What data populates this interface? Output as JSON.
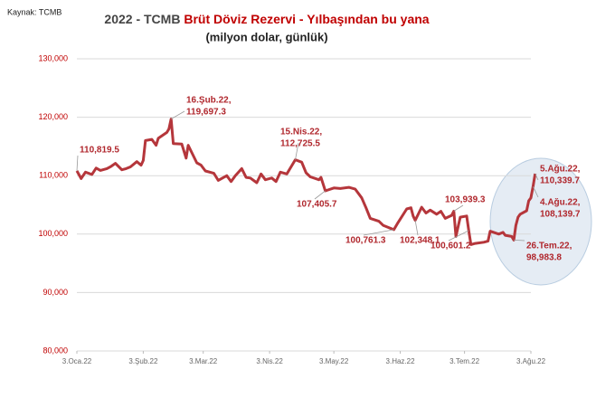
{
  "chart_data": {
    "type": "line",
    "source": "Kaynak: TCMB",
    "title": [
      "2022 - TCMB ",
      "Brüt Döviz Rezervi - Yılbaşından bu yana"
    ],
    "subtitle": "(milyon dolar, günlük)",
    "color": "#b5363b",
    "grid": true,
    "x": [
      "2022-01-03",
      "2022-01-05",
      "2022-01-07",
      "2022-01-10",
      "2022-01-12",
      "2022-01-14",
      "2022-01-17",
      "2022-01-19",
      "2022-01-21",
      "2022-01-24",
      "2022-01-26",
      "2022-01-28",
      "2022-01-31",
      "2022-02-02",
      "2022-02-03",
      "2022-02-04",
      "2022-02-07",
      "2022-02-09",
      "2022-02-10",
      "2022-02-14",
      "2022-02-15",
      "2022-02-16",
      "2022-02-17",
      "2022-02-21",
      "2022-02-23",
      "2022-02-24",
      "2022-02-28",
      "2022-03-02",
      "2022-03-04",
      "2022-03-08",
      "2022-03-10",
      "2022-03-14",
      "2022-03-16",
      "2022-03-18",
      "2022-03-21",
      "2022-03-23",
      "2022-03-25",
      "2022-03-28",
      "2022-03-30",
      "2022-04-01",
      "2022-04-04",
      "2022-04-06",
      "2022-04-08",
      "2022-04-11",
      "2022-04-13",
      "2022-04-15",
      "2022-04-18",
      "2022-04-20",
      "2022-04-22",
      "2022-04-26",
      "2022-04-27",
      "2022-04-29",
      "2022-05-03",
      "2022-05-06",
      "2022-05-10",
      "2022-05-13",
      "2022-05-16",
      "2022-05-18",
      "2022-05-20",
      "2022-05-24",
      "2022-05-26",
      "2022-05-31",
      "2022-06-02",
      "2022-06-06",
      "2022-06-08",
      "2022-06-09",
      "2022-06-10",
      "2022-06-13",
      "2022-06-15",
      "2022-06-17",
      "2022-06-20",
      "2022-06-22",
      "2022-06-24",
      "2022-06-27",
      "2022-06-28",
      "2022-06-29",
      "2022-07-01",
      "2022-07-04",
      "2022-07-05",
      "2022-07-06",
      "2022-07-08",
      "2022-07-12",
      "2022-07-14",
      "2022-07-15",
      "2022-07-19",
      "2022-07-21",
      "2022-07-22",
      "2022-07-25",
      "2022-07-26",
      "2022-07-27",
      "2022-07-28",
      "2022-07-29",
      "2022-08-01",
      "2022-08-02",
      "2022-08-03",
      "2022-08-04",
      "2022-08-05"
    ],
    "values": [
      110819.5,
      109500,
      110600,
      110200,
      111300,
      110900,
      111200,
      111600,
      112100,
      111000,
      111200,
      111500,
      112400,
      111800,
      112600,
      116000,
      116200,
      115200,
      116400,
      117400,
      118000,
      119697.3,
      115500,
      115400,
      113000,
      115200,
      112200,
      111800,
      110800,
      110400,
      109200,
      110000,
      109000,
      110000,
      111200,
      109700,
      109600,
      108800,
      110300,
      109300,
      109600,
      109000,
      110600,
      110300,
      111500,
      112725.5,
      112300,
      110500,
      109800,
      109300,
      109700,
      107405.7,
      107900,
      107800,
      108000,
      107700,
      106200,
      104500,
      102700,
      102200,
      101500,
      100761.3,
      102000,
      104300,
      104500,
      103100,
      102348.1,
      104600,
      103600,
      104100,
      103400,
      103900,
      102700,
      103200,
      103939.3,
      99600,
      102900,
      103100,
      100601.2,
      98200,
      98400,
      98600,
      98800,
      100500,
      100000,
      100300,
      99800,
      99600,
      98983.8,
      101500,
      102900,
      103400,
      104000,
      105700,
      106200,
      108139.7,
      110339.7
    ],
    "xlim": [
      "2022-01-03",
      "2022-08-03"
    ],
    "xticks": [
      {
        "value": "2022-01-03",
        "label": "3.Oca.22"
      },
      {
        "value": "2022-02-03",
        "label": "3.Şub.22"
      },
      {
        "value": "2022-03-03",
        "label": "3.Mar.22"
      },
      {
        "value": "2022-04-03",
        "label": "3.Nis.22"
      },
      {
        "value": "2022-05-03",
        "label": "3.May.22"
      },
      {
        "value": "2022-06-03",
        "label": "3.Haz.22"
      },
      {
        "value": "2022-07-03",
        "label": "3.Tem.22"
      },
      {
        "value": "2022-08-03",
        "label": "3.Ağu.22"
      }
    ],
    "ylim": [
      80000,
      130000
    ],
    "yticks": [
      {
        "value": 80000,
        "label": "80,000"
      },
      {
        "value": 90000,
        "label": "90,000"
      },
      {
        "value": 100000,
        "label": "100,000"
      },
      {
        "value": 110000,
        "label": "110,000"
      },
      {
        "value": 120000,
        "label": "120,000"
      },
      {
        "value": 130000,
        "label": "130,000"
      }
    ],
    "annotations": [
      {
        "x": "2022-01-03",
        "lines": [
          "110,819.5"
        ]
      },
      {
        "x": "2022-02-16",
        "lines": [
          "16.Şub.22,",
          "119,697.3"
        ]
      },
      {
        "x": "2022-04-15",
        "lines": [
          "15.Nis.22,",
          "112,725.5"
        ]
      },
      {
        "x": "2022-04-29",
        "lines": [
          "107,405.7"
        ]
      },
      {
        "x": "2022-05-31",
        "lines": [
          "100,761.3"
        ]
      },
      {
        "x": "2022-06-10",
        "lines": [
          "102,348.1"
        ]
      },
      {
        "x": "2022-06-28",
        "lines": [
          "103,939.3"
        ]
      },
      {
        "x": "2022-07-05",
        "lines": [
          "100,601.2"
        ]
      },
      {
        "x": "2022-07-26",
        "lines": [
          "26.Tem.22,",
          "98,983.8"
        ]
      },
      {
        "x": "2022-08-04",
        "lines": [
          "4.Ağu.22,",
          "108,139.7"
        ]
      },
      {
        "x": "2022-08-05",
        "lines": [
          "5.Ağu.22,",
          "110,339.7"
        ]
      }
    ]
  }
}
